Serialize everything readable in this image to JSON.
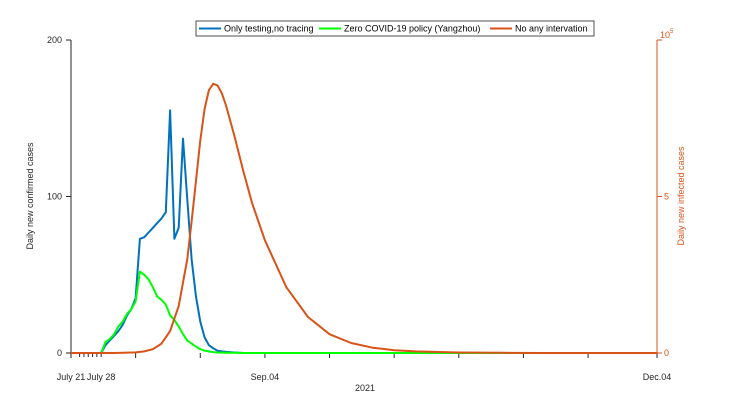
{
  "chart_data": {
    "type": "line",
    "xlabel": "2021",
    "ylabel_left": "Daily new confirmed cases",
    "ylabel_right": "Daily new infected cases",
    "right_axis_exponent": "×10^5",
    "right_axis_exponent_base": "10",
    "right_axis_exponent_power": "5",
    "x_tick_labels": [
      {
        "day": 0,
        "label": "July 21"
      },
      {
        "day": 7,
        "label": "July 28"
      },
      {
        "day": 45,
        "label": "Sep.04"
      },
      {
        "day": 136,
        "label": "Dec.04"
      }
    ],
    "x_minor_tick_days": [
      2,
      3,
      4,
      5,
      6,
      7
    ],
    "x_major_tick_days": [
      15,
      30,
      45,
      60,
      75,
      90,
      105,
      120,
      136
    ],
    "xlim": [
      0,
      136
    ],
    "ylim_left": [
      0,
      200
    ],
    "y_ticks_left": [
      "0",
      "100",
      "200"
    ],
    "ylim_right": [
      0,
      10
    ],
    "y_ticks_right": [
      "0",
      "5",
      "10"
    ],
    "legend_placement": "top",
    "series": [
      {
        "name": "Only testing,no tracing",
        "axis": "left",
        "color": "#0072BD",
        "x": [
          7,
          8,
          9,
          10,
          11,
          12,
          13,
          14,
          15,
          16,
          17,
          18,
          19,
          20,
          21,
          22,
          23,
          24,
          25,
          26,
          27,
          28,
          29,
          30,
          31,
          32,
          33,
          34,
          36,
          38,
          40,
          45,
          136
        ],
        "y": [
          0,
          5,
          8,
          11,
          14,
          18,
          24,
          28,
          35,
          73,
          74,
          77,
          80,
          83,
          86,
          90,
          155,
          73,
          80,
          137,
          98,
          60,
          36,
          20,
          10,
          5,
          3,
          1.5,
          0.7,
          0.3,
          0,
          0,
          0
        ]
      },
      {
        "name": "Zero COVID-19 policy (Yangzhou)",
        "axis": "left",
        "color": "#00FF00",
        "x": [
          7,
          8,
          9,
          10,
          11,
          12,
          13,
          14,
          15,
          16,
          17,
          18,
          19,
          20,
          21,
          22,
          23,
          24,
          25,
          26,
          27,
          28,
          29,
          30,
          31,
          32,
          33,
          34,
          36,
          38,
          40,
          45,
          136
        ],
        "y": [
          0,
          7,
          9,
          12,
          17,
          20,
          25,
          28,
          33,
          52,
          50,
          47,
          42,
          36,
          34,
          31,
          24,
          21,
          17,
          12,
          8,
          6,
          4,
          2.5,
          1.5,
          1,
          0.6,
          0.3,
          0.2,
          0.1,
          0,
          0,
          0
        ]
      },
      {
        "name": "No any intervation",
        "axis": "right",
        "color": "#D95319",
        "x": [
          0,
          10,
          15,
          17,
          19,
          21,
          23,
          25,
          27,
          28,
          29,
          30,
          31,
          32,
          33,
          34,
          35,
          36,
          37,
          38,
          40,
          42,
          45,
          50,
          55,
          60,
          65,
          70,
          75,
          80,
          90,
          100,
          110,
          136
        ],
        "y": [
          0,
          0,
          0.02,
          0.05,
          0.12,
          0.3,
          0.7,
          1.5,
          3.0,
          4.2,
          5.5,
          6.8,
          7.8,
          8.4,
          8.6,
          8.55,
          8.3,
          7.9,
          7.4,
          6.9,
          5.8,
          4.8,
          3.6,
          2.1,
          1.15,
          0.6,
          0.32,
          0.17,
          0.09,
          0.05,
          0.015,
          0.005,
          0.001,
          0
        ]
      }
    ]
  }
}
